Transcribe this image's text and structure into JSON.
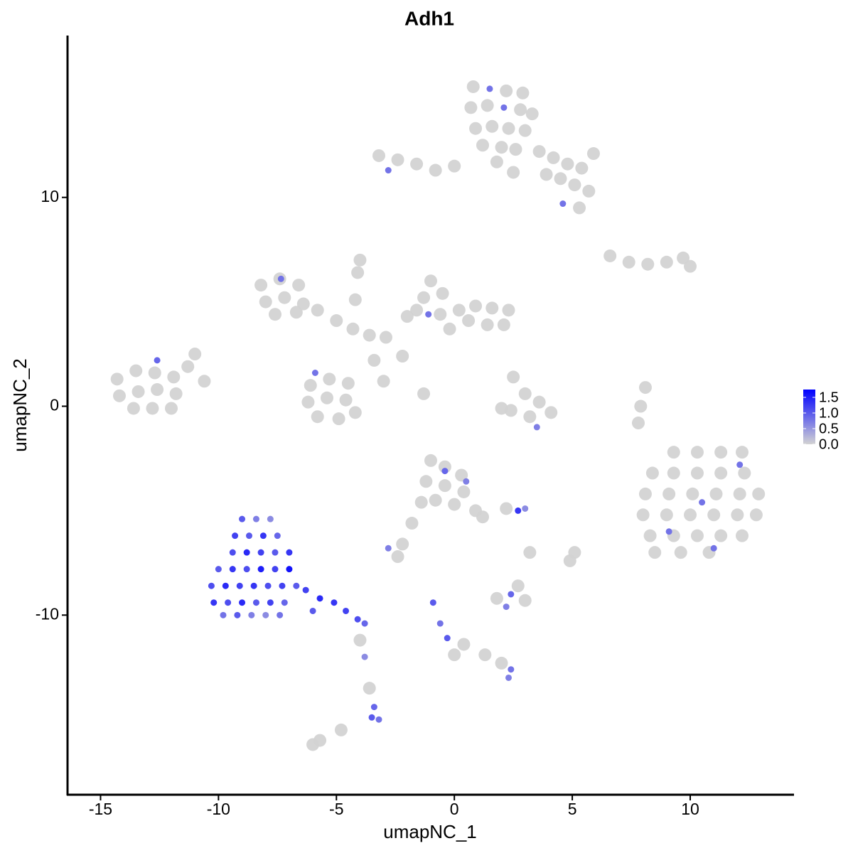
{
  "chart_data": {
    "type": "scatter",
    "title": "Adh1",
    "x_label": "umapNC_1",
    "y_label": "umapNC_2",
    "xlim": [
      -16.4,
      14.4
    ],
    "ylim": [
      -18.6,
      17.75
    ],
    "xticks": [
      -15,
      -10,
      -5,
      0,
      5,
      10
    ],
    "yticks": [
      -10,
      0,
      10
    ],
    "color_low": "#d3d3d3",
    "color_high": "#0000ff",
    "color_range": [
      0,
      1.75
    ],
    "color_ticks": [
      {
        "value": 0,
        "label": "0.0"
      },
      {
        "value": 0.5,
        "label": "0.5"
      },
      {
        "value": 1,
        "label": "1.0"
      },
      {
        "value": 1.5,
        "label": "1.5"
      }
    ],
    "x": [
      0.8,
      1.5,
      2.2,
      2.9,
      0.7,
      1.4,
      2.1,
      2.8,
      3.3,
      0.9,
      1.6,
      2.3,
      3.0,
      1.2,
      2.0,
      2.6,
      3.6,
      4.2,
      4.8,
      5.4,
      3.9,
      4.5,
      5.1,
      5.7,
      4.6,
      5.3,
      -3.2,
      -2.4,
      -1.6,
      -0.8,
      0.0,
      -2.8,
      1.8,
      2.5,
      5.9,
      -8.2,
      -7.4,
      -6.6,
      -8.0,
      -7.2,
      -6.4,
      -7.6,
      -6.7,
      -5.8,
      -5.0,
      -4.3,
      -3.6,
      -2.9,
      -4.2,
      -4.1,
      -4.0,
      -3.4,
      -3.0,
      -2.2,
      -1.3,
      -6.1,
      -5.3,
      -4.5,
      -6.2,
      -5.4,
      -4.6,
      -5.8,
      -4.9,
      -4.2,
      -2.0,
      -1.3,
      -1.0,
      -0.5,
      -1.6,
      -0.6,
      0.2,
      0.9,
      1.6,
      2.3,
      0.6,
      1.4,
      2.1,
      -0.2,
      -7.35,
      -5.9,
      -1.1,
      -14.3,
      -13.5,
      -12.7,
      -11.9,
      -14.2,
      -13.4,
      -12.6,
      -11.8,
      -13.6,
      -12.8,
      -12.0,
      -11.3,
      -11.0,
      -10.6,
      -12.6,
      9.3,
      10.3,
      11.3,
      12.2,
      8.4,
      9.3,
      10.3,
      11.3,
      12.3,
      8.1,
      9.1,
      10.1,
      11.1,
      12.1,
      12.9,
      8.0,
      9.0,
      10.0,
      11.0,
      12.0,
      12.8,
      8.3,
      9.3,
      10.3,
      11.3,
      12.2,
      8.5,
      9.6,
      10.8,
      12.1,
      10.5,
      9.1,
      11.0,
      6.6,
      7.4,
      8.2,
      9.0,
      9.7,
      10.0,
      8.1,
      7.9,
      7.8,
      2.5,
      3.0,
      3.6,
      2.4,
      3.2,
      4.1,
      3.5,
      2.0,
      -1.0,
      -0.4,
      0.3,
      -1.2,
      -0.4,
      0.4,
      -0.8,
      0.0,
      0.9,
      1.2,
      -0.4,
      0.5,
      2.7,
      3.0,
      2.2,
      -2.8,
      -2.4,
      -2.2,
      -1.8,
      -1.4,
      1.8,
      2.4,
      3.0,
      2.2,
      2.7,
      -0.9,
      -0.6,
      -0.3,
      0.4,
      1.3,
      2.0,
      2.4,
      2.3,
      0.0,
      4.9,
      5.1,
      3.2,
      -6.0,
      -5.7,
      -9.0,
      -8.4,
      -7.8,
      -9.3,
      -8.7,
      -8.1,
      -7.5,
      -9.4,
      -8.8,
      -8.2,
      -7.6,
      -7.0,
      -10.0,
      -9.4,
      -8.8,
      -8.2,
      -7.6,
      -7.0,
      -10.3,
      -9.7,
      -9.1,
      -8.5,
      -7.9,
      -7.3,
      -6.7,
      -10.2,
      -9.6,
      -9.0,
      -8.4,
      -7.8,
      -7.2,
      -9.8,
      -9.2,
      -8.6,
      -8.0,
      -7.4,
      -6.3,
      -5.7,
      -5.1,
      -4.6,
      -4.1,
      -3.8,
      -6.0,
      -4.0,
      -3.8,
      -3.6,
      -3.4,
      -3.5,
      -3.2,
      -4.8
    ],
    "y": [
      15.3,
      15.2,
      15.1,
      15.0,
      14.3,
      14.4,
      14.3,
      14.2,
      14.0,
      13.3,
      13.4,
      13.3,
      13.2,
      12.5,
      12.4,
      12.3,
      12.2,
      11.9,
      11.6,
      11.4,
      11.1,
      10.9,
      10.6,
      10.3,
      9.7,
      9.5,
      12.0,
      11.8,
      11.6,
      11.3,
      11.5,
      11.3,
      11.7,
      11.2,
      12.1,
      5.8,
      6.1,
      5.8,
      5.0,
      5.2,
      4.9,
      4.4,
      4.5,
      4.6,
      4.1,
      3.7,
      3.4,
      3.3,
      5.1,
      6.4,
      7.0,
      2.2,
      1.2,
      2.4,
      0.6,
      1.0,
      1.3,
      1.1,
      0.2,
      0.4,
      0.3,
      -0.5,
      -0.6,
      -0.3,
      4.3,
      5.2,
      6.0,
      5.4,
      4.6,
      4.4,
      4.6,
      4.8,
      4.7,
      4.6,
      4.1,
      3.9,
      3.9,
      3.7,
      6.1,
      1.6,
      4.4,
      1.3,
      1.7,
      1.6,
      1.4,
      0.5,
      0.7,
      0.8,
      0.6,
      -0.1,
      -0.1,
      -0.1,
      1.9,
      2.5,
      1.2,
      2.2,
      -2.2,
      -2.2,
      -2.2,
      -2.2,
      -3.2,
      -3.2,
      -3.2,
      -3.2,
      -3.2,
      -4.2,
      -4.2,
      -4.2,
      -4.2,
      -4.2,
      -4.2,
      -5.2,
      -5.2,
      -5.2,
      -5.2,
      -5.2,
      -5.2,
      -6.2,
      -6.2,
      -6.2,
      -6.2,
      -6.2,
      -7.0,
      -7.0,
      -7.0,
      -2.8,
      -4.6,
      -6.0,
      -6.8,
      7.2,
      6.9,
      6.8,
      6.9,
      7.1,
      6.7,
      0.9,
      0.0,
      -0.8,
      1.4,
      0.6,
      0.2,
      -0.2,
      -0.5,
      -0.3,
      -1.0,
      -0.1,
      -2.6,
      -2.9,
      -3.3,
      -3.6,
      -3.8,
      -4.1,
      -4.5,
      -4.7,
      -5.0,
      -5.3,
      -3.1,
      -3.6,
      -5.0,
      -4.9,
      -4.9,
      -6.8,
      -7.2,
      -6.6,
      -5.6,
      -4.6,
      -9.2,
      -9.0,
      -9.3,
      -9.6,
      -8.6,
      -9.4,
      -10.4,
      -11.1,
      -11.4,
      -11.9,
      -12.3,
      -12.6,
      -13.0,
      -11.9,
      -7.4,
      -7.0,
      -7.0,
      -16.2,
      -16.0,
      -5.4,
      -5.4,
      -5.4,
      -6.2,
      -6.2,
      -6.2,
      -6.2,
      -7.0,
      -7.0,
      -7.0,
      -7.0,
      -7.0,
      -7.8,
      -7.8,
      -7.8,
      -7.8,
      -7.8,
      -7.8,
      -8.6,
      -8.6,
      -8.6,
      -8.6,
      -8.6,
      -8.6,
      -8.6,
      -9.4,
      -9.4,
      -9.4,
      -9.4,
      -9.4,
      -9.4,
      -10.0,
      -10.0,
      -10.0,
      -10.0,
      -10.0,
      -8.8,
      -9.2,
      -9.4,
      -9.8,
      -10.2,
      -10.4,
      -9.8,
      -11.2,
      -12.0,
      -13.5,
      -14.4,
      -14.9,
      -15.0,
      -15.5
    ],
    "values": [
      0,
      0.8,
      0,
      0,
      0,
      0,
      0.8,
      0,
      0,
      0,
      0,
      0,
      0,
      0,
      0,
      0,
      0,
      0,
      0,
      0,
      0,
      0,
      0,
      0,
      0.8,
      0,
      0,
      0,
      0,
      0,
      0,
      0.8,
      0,
      0,
      0,
      0,
      0,
      0,
      0,
      0,
      0,
      0,
      0,
      0,
      0,
      0,
      0,
      0,
      0,
      0,
      0,
      0,
      0,
      0,
      0,
      0,
      0,
      0,
      0,
      0,
      0,
      0,
      0,
      0,
      0,
      0,
      0,
      0,
      0,
      0,
      0,
      0,
      0,
      0,
      0,
      0,
      0,
      0,
      0.8,
      0.8,
      0.8,
      0,
      0,
      0,
      0,
      0,
      0,
      0,
      0,
      0,
      0,
      0,
      0,
      0,
      0,
      0.9,
      0,
      0,
      0,
      0,
      0,
      0,
      0,
      0,
      0,
      0,
      0,
      0,
      0,
      0,
      0,
      0,
      0,
      0,
      0,
      0,
      0,
      0,
      0,
      0,
      0,
      0,
      0,
      0,
      0,
      0.8,
      0.8,
      0.8,
      0.8,
      0,
      0,
      0,
      0,
      0,
      0,
      0,
      0,
      0,
      0,
      0,
      0,
      0,
      0,
      0,
      0.7,
      0,
      0,
      0,
      0,
      0,
      0,
      0,
      0,
      0,
      0,
      0,
      0.9,
      0.7,
      1.3,
      0.6,
      0,
      0.7,
      0,
      0,
      0,
      0,
      0,
      0.9,
      0,
      0.7,
      0,
      1.0,
      0.8,
      1.0,
      0,
      0,
      0,
      0.8,
      0.7,
      0,
      0,
      0,
      0,
      0,
      0,
      1.0,
      0.7,
      0.6,
      1.2,
      1.0,
      1.3,
      0.9,
      1.1,
      1.4,
      1.2,
      1.0,
      1.3,
      1.0,
      1.3,
      1.1,
      1.5,
      1.2,
      1.6,
      1.1,
      1.4,
      1.2,
      1.3,
      1.1,
      1.2,
      1.0,
      1.3,
      1.1,
      1.4,
      1.0,
      1.2,
      0.9,
      0.8,
      1.0,
      0.7,
      0.6,
      0.8,
      1.2,
      1.4,
      1.3,
      1.2,
      1.1,
      0.9,
      1.0,
      0,
      0.6,
      0,
      0.9,
      1.0,
      0.8,
      0
    ]
  }
}
